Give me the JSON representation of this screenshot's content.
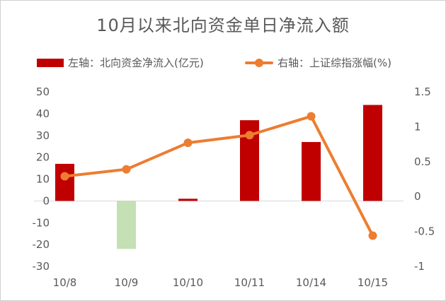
{
  "chart_data": {
    "type": "bar+line",
    "title": "10月以来北向资金单日净流入额",
    "categories": [
      "10/8",
      "10/9",
      "10/10",
      "10/11",
      "10/14",
      "10/15"
    ],
    "series": [
      {
        "name": "左轴：北向资金净流入(亿元)",
        "type": "bar",
        "axis": "left",
        "values": [
          17,
          -22,
          1,
          37,
          27,
          44
        ],
        "colors": [
          "#c00000",
          "#c5e0b4",
          "#c00000",
          "#c00000",
          "#c00000",
          "#c00000"
        ]
      },
      {
        "name": "右轴：上证综指涨幅(%)",
        "type": "line",
        "axis": "right",
        "values": [
          0.29,
          0.39,
          0.77,
          0.88,
          1.15,
          -0.56
        ],
        "color": "#ed7d31"
      }
    ],
    "y_left": {
      "min": -30,
      "max": 50,
      "ticks": [
        50,
        40,
        30,
        20,
        10,
        0,
        -10,
        -20,
        -30
      ]
    },
    "y_right": {
      "min": -1,
      "max": 1.5,
      "ticks": [
        1.5,
        1,
        0.5,
        0,
        -0.5,
        -1
      ]
    },
    "legend_position": "top",
    "grid": false
  }
}
